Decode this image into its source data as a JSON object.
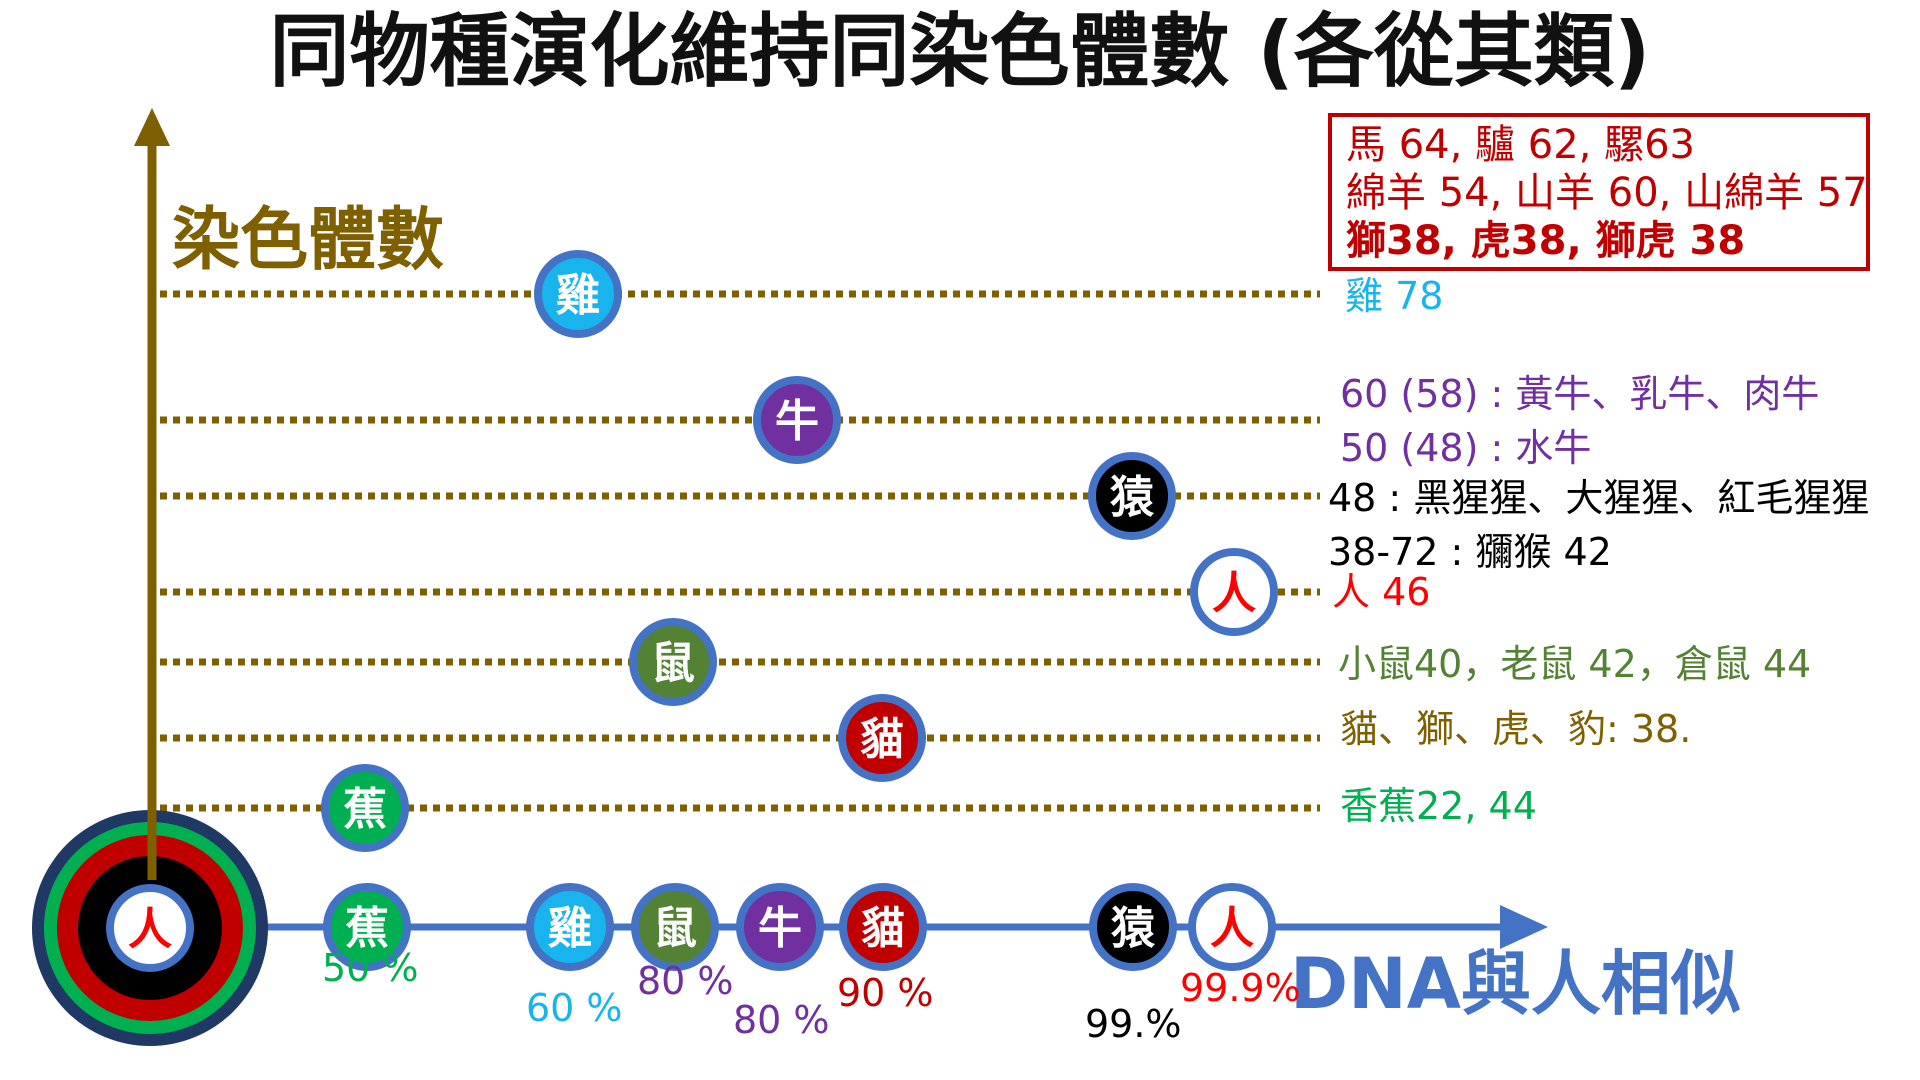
{
  "title": "同物種演化維持同染色體數 (各從其類)",
  "axes": {
    "y_label": "染色體數",
    "x_label": "DNA與人相似"
  },
  "colors": {
    "axis_y": "#7f6000",
    "axis_x": "#4472c4",
    "dotted": "#7f6000",
    "box_border": "#c00000"
  },
  "origin": {
    "glyph": "人",
    "ring_colors": [
      "#1f3864",
      "#00b050",
      "#c00000",
      "#000000"
    ]
  },
  "info_box": {
    "line1": "馬 64, 驢 62,  騾63",
    "line2": "綿羊 54, 山羊 60,  山綿羊 57",
    "line3": "獅38, 虎38, 獅虎  38"
  },
  "rows": [
    {
      "id": "chicken",
      "glyph": "雞",
      "fill": "#19b4ee",
      "text_color": "#19b4ee",
      "lines": [
        "雞 78"
      ]
    },
    {
      "id": "cow",
      "glyph": "牛",
      "fill": "#7030a0",
      "text_color": "#7030a0",
      "lines": [
        "60 (58) : 黃牛、乳牛、肉牛",
        "50 (48) : 水牛"
      ]
    },
    {
      "id": "ape",
      "glyph": "猿",
      "fill": "#000000",
      "text_color": "#000000",
      "lines": [
        "48  : 黑猩猩、大猩猩、紅毛猩猩",
        "38-72 : 獼猴 42"
      ]
    },
    {
      "id": "human",
      "glyph": "人",
      "fill": "#ffffff",
      "glyph_color": "#ff0000",
      "text_color": "#ff0000",
      "lines": [
        "人 46"
      ]
    },
    {
      "id": "mouse",
      "glyph": "鼠",
      "fill": "#548235",
      "text_color": "#548235",
      "lines": [
        "小鼠40，老鼠 42，倉鼠 44"
      ]
    },
    {
      "id": "cat",
      "glyph": "貓",
      "fill": "#c00000",
      "text_color": "#7f6000",
      "lines": [
        "貓、獅、虎、豹:  38."
      ]
    },
    {
      "id": "banana",
      "glyph": "蕉",
      "fill": "#00b050",
      "text_color": "#00b050",
      "lines": [
        "香蕉22, 44"
      ]
    }
  ],
  "dna_axis": [
    {
      "id": "banana",
      "glyph": "蕉",
      "fill": "#00b050",
      "pct": "50 %",
      "pct_color": "#00b050"
    },
    {
      "id": "chicken",
      "glyph": "雞",
      "fill": "#19b4ee",
      "pct": "60 %",
      "pct_color": "#19b4ee"
    },
    {
      "id": "mouse",
      "glyph": "鼠",
      "fill": "#548235",
      "pct": "80 %",
      "pct_color": "#7030a0"
    },
    {
      "id": "cow",
      "glyph": "牛",
      "fill": "#7030a0",
      "pct": "80 %",
      "pct_color": "#7030a0"
    },
    {
      "id": "cat",
      "glyph": "貓",
      "fill": "#c00000",
      "pct": "90 %",
      "pct_color": "#c00000"
    },
    {
      "id": "ape",
      "glyph": "猿",
      "fill": "#000000",
      "pct": "99.%",
      "pct_color": "#000000"
    },
    {
      "id": "human",
      "glyph": "人",
      "fill": "#ffffff",
      "glyph_color": "#ff0000",
      "pct": "99.9%",
      "pct_color": "#ff0000"
    }
  ]
}
